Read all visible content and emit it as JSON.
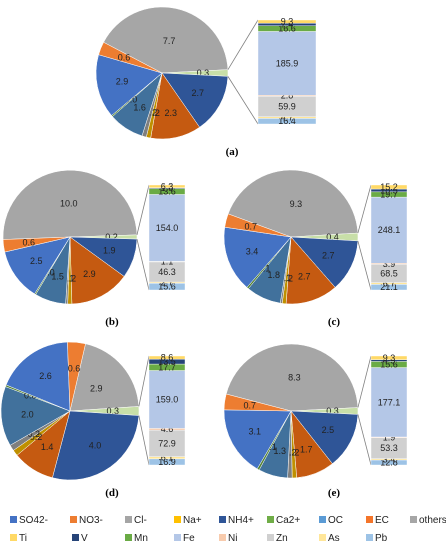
{
  "legend": [
    {
      "name": "SO42-",
      "color": "#4472C4"
    },
    {
      "name": "NO3-",
      "color": "#ED7D31"
    },
    {
      "name": "Cl-",
      "color": "#A5A5A5"
    },
    {
      "name": "Na+",
      "color": "#FFC000"
    },
    {
      "name": "NH4+",
      "color": "#2F5597"
    },
    {
      "name": "Ca2+",
      "color": "#70AD47"
    },
    {
      "name": "OC",
      "color": "#5B9BD5"
    },
    {
      "name": "EC",
      "color": "#F4752A"
    },
    {
      "name": "others",
      "color": "#A6A6A6"
    },
    {
      "name": "Ti",
      "color": "#FFD966"
    },
    {
      "name": "V",
      "color": "#264478"
    },
    {
      "name": "Mn",
      "color": "#6AAB45"
    },
    {
      "name": "Fe",
      "color": "#B4C7E7"
    },
    {
      "name": "Ni",
      "color": "#F8CBAD"
    },
    {
      "name": "Zn",
      "color": "#D0D0D0"
    },
    {
      "name": "As",
      "color": "#FFE699"
    },
    {
      "name": "Pb",
      "color": "#9DC3E6"
    }
  ],
  "chart_data": [
    {
      "type": "bar-of-pie",
      "panel_label": "(a)",
      "pie": [
        {
          "category": "others",
          "value": 7.7,
          "label": "7.7",
          "color": "#A6A6A6"
        },
        {
          "category": "trace elements",
          "value": 0.3,
          "label": "0.3",
          "color": "#C8DFA8"
        },
        {
          "category": "NH4+",
          "value": 2.7,
          "label": "2.7",
          "color": "#2F5597"
        },
        {
          "category": "NO3-",
          "value": 2.3,
          "label": "2.3",
          "color": "#C55A11"
        },
        {
          "category": "Na+",
          "value": 0.2,
          "label": "0.2",
          "color": "#BF9000"
        },
        {
          "category": "Cl-",
          "value": 0.2,
          "label": "0.2",
          "color": "#7F7F7F"
        },
        {
          "category": "OC",
          "value": 1.6,
          "label": "1.6",
          "color": "#41719C"
        },
        {
          "category": "Ca2+",
          "value": 0.0,
          "label": "0.0",
          "color": "#548235"
        },
        {
          "category": "SO42-",
          "value": 2.9,
          "label": "2.9",
          "color": "#4472C4"
        },
        {
          "category": "EC",
          "value": 0.6,
          "label": "0.6",
          "color": "#ED7D31"
        }
      ],
      "bar": [
        {
          "element": "Pb",
          "value": 16.4,
          "label": "16.4"
        },
        {
          "element": "As",
          "value": 4.7,
          "label": "4.7"
        },
        {
          "element": "Zn",
          "value": 59.9,
          "label": "59.9"
        },
        {
          "element": "Ni",
          "value": 2.8,
          "label": "2.8"
        },
        {
          "element": "Fe",
          "value": 185.9,
          "label": "185.9"
        },
        {
          "element": "Mn",
          "value": 16.6,
          "label": "16.6"
        },
        {
          "element": "V",
          "value": 7.4,
          "label": "7.4"
        },
        {
          "element": "Ti",
          "value": 9.3,
          "label": "9.3"
        }
      ]
    },
    {
      "type": "bar-of-pie",
      "panel_label": "(b)",
      "pie": [
        {
          "category": "others",
          "value": 10.0,
          "label": "10.0",
          "color": "#A6A6A6"
        },
        {
          "category": "trace elements",
          "value": 0.2,
          "label": "0.2",
          "color": "#C8DFA8"
        },
        {
          "category": "NH4+",
          "value": 1.9,
          "label": "1.9",
          "color": "#2F5597"
        },
        {
          "category": "NO3-",
          "value": 2.9,
          "label": "2.9",
          "color": "#C55A11"
        },
        {
          "category": "Na+",
          "value": 0.2,
          "label": "0.2",
          "color": "#BF9000"
        },
        {
          "category": "Cl-",
          "value": 0.1,
          "label": "0.1",
          "color": "#7F7F7F"
        },
        {
          "category": "OC",
          "value": 1.5,
          "label": "1.5",
          "color": "#41719C"
        },
        {
          "category": "Ca2+",
          "value": 0.0,
          "label": "0.0",
          "color": "#548235"
        },
        {
          "category": "SO42-",
          "value": 2.5,
          "label": "2.5",
          "color": "#4472C4"
        },
        {
          "category": "EC",
          "value": 0.6,
          "label": "0.6",
          "color": "#ED7D31"
        }
      ],
      "bar": [
        {
          "element": "Pb",
          "value": 15.6,
          "label": "15.6"
        },
        {
          "element": "As",
          "value": 2.7,
          "label": "2.7"
        },
        {
          "element": "Zn",
          "value": 46.3,
          "label": "46.3"
        },
        {
          "element": "Ni",
          "value": 1.1,
          "label": "1.1"
        },
        {
          "element": "Fe",
          "value": 154.0,
          "label": "154.0"
        },
        {
          "element": "Mn",
          "value": 13.6,
          "label": "13.6"
        },
        {
          "element": "V",
          "value": 1.8,
          "label": "1.8"
        },
        {
          "element": "Ti",
          "value": 6.3,
          "label": "6.3"
        }
      ]
    },
    {
      "type": "bar-of-pie",
      "panel_label": "(c)",
      "pie": [
        {
          "category": "others",
          "value": 9.3,
          "label": "9.3",
          "color": "#A6A6A6"
        },
        {
          "category": "trace elements",
          "value": 0.4,
          "label": "0.4",
          "color": "#C8DFA8"
        },
        {
          "category": "NH4+",
          "value": 2.7,
          "label": "2.7",
          "color": "#2F5597"
        },
        {
          "category": "NO3-",
          "value": 2.7,
          "label": "2.7",
          "color": "#C55A11"
        },
        {
          "category": "Na+",
          "value": 0.2,
          "label": "0.2",
          "color": "#BF9000"
        },
        {
          "category": "Cl-",
          "value": 0.1,
          "label": "0.1",
          "color": "#7F7F7F"
        },
        {
          "category": "OC",
          "value": 1.8,
          "label": "1.8",
          "color": "#41719C"
        },
        {
          "category": "Ca2+",
          "value": 0.1,
          "label": "0.1",
          "color": "#548235"
        },
        {
          "category": "SO42-",
          "value": 3.4,
          "label": "3.4",
          "color": "#4472C4"
        },
        {
          "category": "EC",
          "value": 0.7,
          "label": "0.7",
          "color": "#ED7D31"
        }
      ],
      "bar": [
        {
          "element": "Pb",
          "value": 21.1,
          "label": "21.1"
        },
        {
          "element": "As",
          "value": 6.7,
          "label": "6.7"
        },
        {
          "element": "Zn",
          "value": 68.5,
          "label": "68.5"
        },
        {
          "element": "Ni",
          "value": 3.9,
          "label": "3.9"
        },
        {
          "element": "Fe",
          "value": 248.1,
          "label": "248.1"
        },
        {
          "element": "Mn",
          "value": 19.7,
          "label": "19.7"
        },
        {
          "element": "V",
          "value": 10.5,
          "label": "10.5"
        },
        {
          "element": "Ti",
          "value": 15.2,
          "label": "15.2"
        }
      ]
    },
    {
      "type": "bar-of-pie",
      "panel_label": "(d)",
      "pie": [
        {
          "category": "others",
          "value": 2.9,
          "label": "2.9",
          "color": "#A6A6A6"
        },
        {
          "category": "trace elements",
          "value": 0.3,
          "label": "0.3",
          "color": "#C8DFA8"
        },
        {
          "category": "NH4+",
          "value": 4.0,
          "label": "4.0",
          "color": "#2F5597"
        },
        {
          "category": "NO3-",
          "value": 1.4,
          "label": "1.4",
          "color": "#C55A11"
        },
        {
          "category": "Na+",
          "value": 0.2,
          "label": "0.2",
          "color": "#BF9000"
        },
        {
          "category": "Cl-",
          "value": 0.2,
          "label": "0.2",
          "color": "#7F7F7F"
        },
        {
          "category": "OC",
          "value": 2.0,
          "label": "2.0",
          "color": "#41719C"
        },
        {
          "category": "Ca2+",
          "value": 0.0,
          "label": "0.0",
          "color": "#548235"
        },
        {
          "category": "SO42-",
          "value": 2.6,
          "label": "2.6",
          "color": "#4472C4"
        },
        {
          "category": "EC",
          "value": 0.6,
          "label": "0.6",
          "color": "#ED7D31"
        }
      ],
      "bar": [
        {
          "element": "Pb",
          "value": 16.9,
          "label": "16.9"
        },
        {
          "element": "As",
          "value": 6.1,
          "label": "6.1"
        },
        {
          "element": "Zn",
          "value": 72.9,
          "label": "72.9"
        },
        {
          "element": "Ni",
          "value": 4.6,
          "label": "4.6"
        },
        {
          "element": "Fe",
          "value": 159.0,
          "label": "159.0"
        },
        {
          "element": "Mn",
          "value": 17.7,
          "label": "17.7"
        },
        {
          "element": "V",
          "value": 13.5,
          "label": "13.5"
        },
        {
          "element": "Ti",
          "value": 8.6,
          "label": "8.6"
        }
      ]
    },
    {
      "type": "bar-of-pie",
      "panel_label": "(e)",
      "pie": [
        {
          "category": "others",
          "value": 8.3,
          "label": "8.3",
          "color": "#A6A6A6"
        },
        {
          "category": "trace elements",
          "value": 0.3,
          "label": "0.3",
          "color": "#C8DFA8"
        },
        {
          "category": "NH4+",
          "value": 2.5,
          "label": "2.5",
          "color": "#2F5597"
        },
        {
          "category": "NO3-",
          "value": 1.7,
          "label": "1.7",
          "color": "#C55A11"
        },
        {
          "category": "Na+",
          "value": 0.2,
          "label": "0.2",
          "color": "#BF9000"
        },
        {
          "category": "Cl-",
          "value": 0.2,
          "label": "0.2",
          "color": "#7F7F7F"
        },
        {
          "category": "OC",
          "value": 1.3,
          "label": "1.3",
          "color": "#41719C"
        },
        {
          "category": "Ca2+",
          "value": 0.1,
          "label": "0.1",
          "color": "#548235"
        },
        {
          "category": "SO42-",
          "value": 3.1,
          "label": "3.1",
          "color": "#4472C4"
        },
        {
          "category": "EC",
          "value": 0.7,
          "label": "0.7",
          "color": "#ED7D31"
        }
      ],
      "bar": [
        {
          "element": "Pb",
          "value": 12.8,
          "label": "12.8"
        },
        {
          "element": "As",
          "value": 3.4,
          "label": "3.4"
        },
        {
          "element": "Zn",
          "value": 53.3,
          "label": "53.3"
        },
        {
          "element": "Ni",
          "value": 1.9,
          "label": "1.9"
        },
        {
          "element": "Fe",
          "value": 177.1,
          "label": "177.1"
        },
        {
          "element": "Mn",
          "value": 15.6,
          "label": "15.6"
        },
        {
          "element": "V",
          "value": 4.5,
          "label": "4.5"
        },
        {
          "element": "Ti",
          "value": 9.3,
          "label": "9.3"
        }
      ]
    }
  ]
}
